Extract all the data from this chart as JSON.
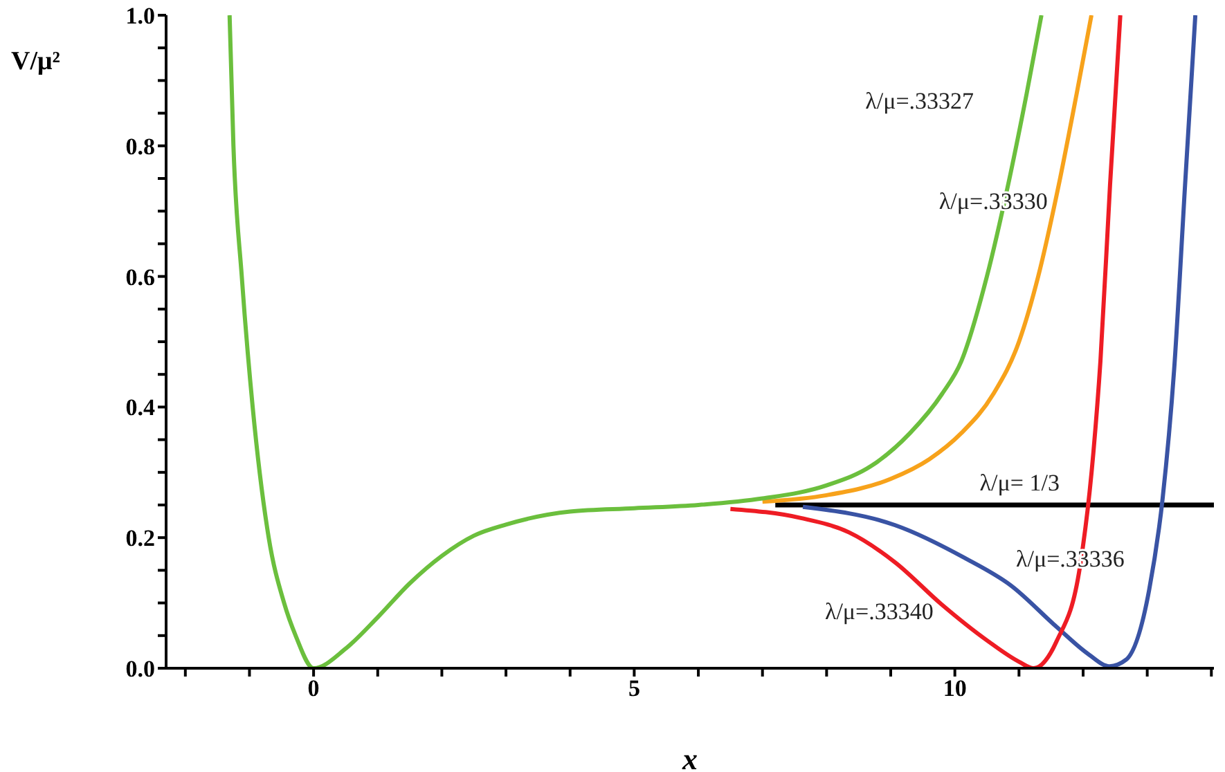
{
  "chart_data": {
    "type": "line",
    "xlabel": "x",
    "ylabel": "V/μ²",
    "xlim": [
      -2.3,
      14.04
    ],
    "ylim": [
      0,
      1
    ],
    "xticks": [
      {
        "value": -2,
        "label": null
      },
      {
        "value": -1,
        "label": null
      },
      0,
      {
        "value": 1,
        "label": null
      },
      {
        "value": 2,
        "label": null
      },
      {
        "value": 3,
        "label": null
      },
      {
        "value": 4,
        "label": null
      },
      5,
      {
        "value": 6,
        "label": null
      },
      {
        "value": 7,
        "label": null
      },
      {
        "value": 8,
        "label": null
      },
      {
        "value": 9,
        "label": null
      },
      10,
      {
        "value": 11,
        "label": null
      },
      {
        "value": 12,
        "label": null
      },
      {
        "value": 13,
        "label": null
      },
      {
        "value": 14,
        "label": null
      }
    ],
    "yticks": [
      {
        "value": 0,
        "label": "0.0"
      },
      {
        "value": 0.05,
        "label": null
      },
      {
        "value": 0.1,
        "label": null
      },
      {
        "value": 0.15,
        "label": null
      },
      {
        "value": 0.2,
        "label": "0.2"
      },
      {
        "value": 0.25,
        "label": null
      },
      {
        "value": 0.3,
        "label": null
      },
      {
        "value": 0.35,
        "label": null
      },
      {
        "value": 0.4,
        "label": "0.4"
      },
      {
        "value": 0.45,
        "label": null
      },
      {
        "value": 0.5,
        "label": null
      },
      {
        "value": 0.55,
        "label": null
      },
      {
        "value": 0.6,
        "label": "0.6"
      },
      {
        "value": 0.65,
        "label": null
      },
      {
        "value": 0.7,
        "label": null
      },
      {
        "value": 0.75,
        "label": null
      },
      {
        "value": 0.8,
        "label": "0.8"
      },
      {
        "value": 0.85,
        "label": null
      },
      {
        "value": 0.9,
        "label": null
      },
      {
        "value": 0.95,
        "label": null
      },
      {
        "value": 1,
        "label": "1.0"
      }
    ],
    "marker": "none",
    "line_style": "solid",
    "series": [
      {
        "name": "λ/μ= 1/3",
        "color": "#000000",
        "x": [
          7.2,
          14.04
        ],
        "values": [
          0.25,
          0.25
        ]
      },
      {
        "name": "λ/μ=.33336",
        "color": "#3953a4",
        "x": [
          7.63,
          9.07,
          10.15,
          10.87,
          11.59,
          12.09,
          12.41,
          12.67,
          13.03,
          13.24,
          13.42,
          13.59,
          13.75
        ],
        "values": [
          0.247,
          0.219,
          0.169,
          0.127,
          0.063,
          0.021,
          0.003,
          0.013,
          0.12,
          0.26,
          0.458,
          0.74,
          1
        ]
      },
      {
        "name": "λ/μ=.33340",
        "color": "#ee1c24",
        "x": [
          6.5,
          7.6,
          8.35,
          9.07,
          9.79,
          10.51,
          11,
          11.23,
          11.59,
          11.95,
          12.16,
          12.27,
          12.42,
          12.58
        ],
        "values": [
          0.244,
          0.23,
          0.208,
          0.162,
          0.098,
          0.042,
          0.01,
          0,
          0.042,
          0.155,
          0.33,
          0.47,
          0.74,
          1
        ]
      },
      {
        "name": "λ/μ=.33330",
        "color": "#f7a21b",
        "x": [
          7,
          8,
          9,
          9.6,
          10.1,
          10.6,
          11,
          11.3,
          11.62,
          11.9,
          12.13
        ],
        "values": [
          0.255,
          0.265,
          0.29,
          0.32,
          0.36,
          0.42,
          0.5,
          0.6,
          0.74,
          0.88,
          1
        ]
      },
      {
        "name": "λ/μ=.33327",
        "color": "#6bbf3d",
        "x": [
          -1.31,
          -1.25,
          -1.12,
          -0.95,
          -0.7,
          -0.46,
          -0.28,
          0,
          0.5,
          1,
          1.5,
          2,
          2.5,
          3,
          4,
          5,
          6,
          7,
          8,
          8.7,
          9.3,
          9.8,
          10.1,
          10.5,
          10.83,
          11.12,
          11.35
        ],
        "values": [
          1,
          0.8,
          0.6,
          0.4,
          0.2,
          0.1,
          0.05,
          0,
          0.03,
          0.078,
          0.13,
          0.172,
          0.203,
          0.22,
          0.24,
          0.245,
          0.25,
          0.26,
          0.28,
          0.31,
          0.36,
          0.42,
          0.47,
          0.6,
          0.74,
          0.88,
          1
        ]
      }
    ]
  }
}
